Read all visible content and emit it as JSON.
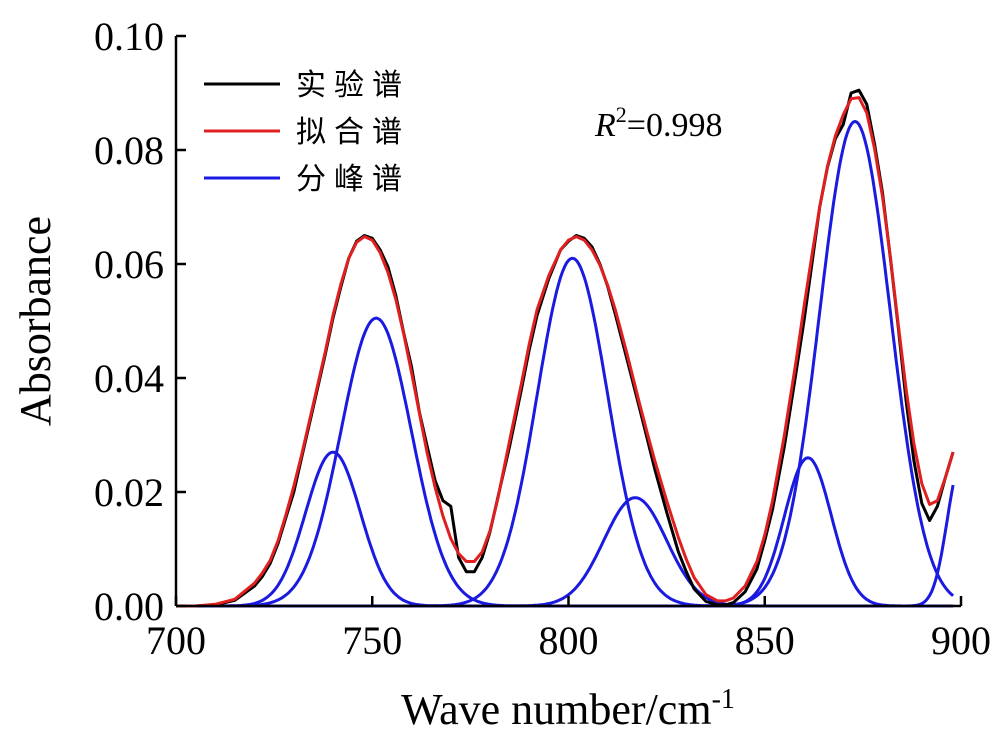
{
  "chart_data": {
    "type": "line",
    "title": "",
    "xlabel": "Wave number/cm",
    "xlabel_superscript": "-1",
    "ylabel": "Absorbance",
    "xlim": [
      700,
      900
    ],
    "ylim": [
      0,
      0.1
    ],
    "xticks": [
      "700",
      "750",
      "800",
      "850",
      "900"
    ],
    "yticks": [
      "0.00",
      "0.02",
      "0.04",
      "0.06",
      "0.08",
      "0.10"
    ],
    "grid": false,
    "legend_position": "top-left",
    "annotation": {
      "italic": "R",
      "sup": "2",
      "rest": "=0.998"
    },
    "series": [
      {
        "name": "实验谱",
        "color": "#000000",
        "x": [
          700,
          705,
          710,
          715,
          720,
          722,
          724,
          726,
          728,
          730,
          732,
          735,
          738,
          740,
          742,
          744,
          746,
          748,
          750,
          752,
          754,
          756,
          758,
          760,
          762,
          764,
          766,
          768,
          770,
          772,
          774,
          776,
          778,
          780,
          782,
          785,
          788,
          790,
          792,
          795,
          798,
          800,
          802,
          804,
          806,
          808,
          810,
          812,
          815,
          818,
          820,
          822,
          825,
          828,
          830,
          832,
          835,
          838,
          840,
          842,
          845,
          848,
          850,
          852,
          855,
          858,
          860,
          862,
          864,
          866,
          868,
          870,
          872,
          874,
          876,
          878,
          880,
          882,
          884,
          886,
          888,
          890,
          892,
          894,
          896,
          898
        ],
        "y": [
          0.0,
          0.0,
          0.0002,
          0.001,
          0.0035,
          0.0052,
          0.0075,
          0.011,
          0.0155,
          0.02,
          0.026,
          0.035,
          0.044,
          0.0505,
          0.056,
          0.061,
          0.064,
          0.065,
          0.0645,
          0.0625,
          0.0595,
          0.0545,
          0.048,
          0.042,
          0.034,
          0.028,
          0.022,
          0.0185,
          0.0175,
          0.0085,
          0.006,
          0.006,
          0.0085,
          0.013,
          0.019,
          0.028,
          0.038,
          0.045,
          0.051,
          0.0575,
          0.0625,
          0.064,
          0.065,
          0.0645,
          0.063,
          0.06,
          0.056,
          0.051,
          0.043,
          0.035,
          0.0295,
          0.024,
          0.0165,
          0.0095,
          0.006,
          0.003,
          0.0008,
          0.0002,
          0.0002,
          0.0006,
          0.0025,
          0.0065,
          0.0115,
          0.017,
          0.028,
          0.041,
          0.05,
          0.06,
          0.07,
          0.077,
          0.082,
          0.0845,
          0.09,
          0.0905,
          0.088,
          0.081,
          0.0725,
          0.061,
          0.049,
          0.036,
          0.0255,
          0.018,
          0.015,
          0.0175,
          0.0225,
          0.027
        ]
      },
      {
        "name": "拟合谱",
        "color": "#e02020",
        "x": [
          700,
          705,
          710,
          715,
          720,
          722,
          724,
          726,
          728,
          730,
          732,
          735,
          738,
          740,
          742,
          744,
          746,
          748,
          750,
          752,
          754,
          756,
          758,
          760,
          762,
          764,
          766,
          768,
          770,
          772,
          774,
          776,
          778,
          780,
          782,
          785,
          788,
          790,
          792,
          795,
          798,
          800,
          802,
          804,
          806,
          808,
          810,
          812,
          815,
          818,
          820,
          822,
          825,
          828,
          830,
          832,
          835,
          838,
          840,
          842,
          845,
          848,
          850,
          852,
          855,
          858,
          860,
          862,
          864,
          866,
          868,
          870,
          872,
          874,
          876,
          878,
          880,
          882,
          884,
          886,
          888,
          890,
          892,
          894,
          896,
          898
        ],
        "y": [
          0.0,
          0.0,
          0.0003,
          0.0012,
          0.004,
          0.0058,
          0.008,
          0.0115,
          0.016,
          0.021,
          0.0265,
          0.0355,
          0.0445,
          0.051,
          0.0565,
          0.061,
          0.0638,
          0.0648,
          0.0642,
          0.062,
          0.0585,
          0.0538,
          0.0478,
          0.041,
          0.0338,
          0.0268,
          0.0208,
          0.0158,
          0.0118,
          0.0092,
          0.0078,
          0.0078,
          0.0095,
          0.0132,
          0.0188,
          0.029,
          0.039,
          0.046,
          0.052,
          0.058,
          0.0625,
          0.0642,
          0.0648,
          0.0642,
          0.0625,
          0.0598,
          0.0562,
          0.0518,
          0.044,
          0.0358,
          0.0305,
          0.0255,
          0.0185,
          0.012,
          0.0082,
          0.005,
          0.002,
          0.0009,
          0.0009,
          0.0014,
          0.0035,
          0.0078,
          0.0125,
          0.0185,
          0.03,
          0.043,
          0.0525,
          0.0615,
          0.07,
          0.0772,
          0.0825,
          0.0862,
          0.089,
          0.0892,
          0.0865,
          0.0802,
          0.0718,
          0.0612,
          0.0495,
          0.038,
          0.0285,
          0.0215,
          0.0178,
          0.0185,
          0.0225,
          0.027
        ]
      },
      {
        "name": "分峰谱",
        "color": "#1a1ae0",
        "peaks": [
          {
            "center": 740,
            "height": 0.027,
            "sigma": 7
          },
          {
            "center": 751,
            "height": 0.0505,
            "sigma": 9
          },
          {
            "center": 801,
            "height": 0.061,
            "sigma": 9
          },
          {
            "center": 817,
            "height": 0.019,
            "sigma": 8
          },
          {
            "center": 861,
            "height": 0.026,
            "sigma": 6
          },
          {
            "center": 873,
            "height": 0.085,
            "sigma": 9
          },
          {
            "center": 900,
            "height": 0.025,
            "sigma": 3.5
          }
        ]
      }
    ]
  }
}
